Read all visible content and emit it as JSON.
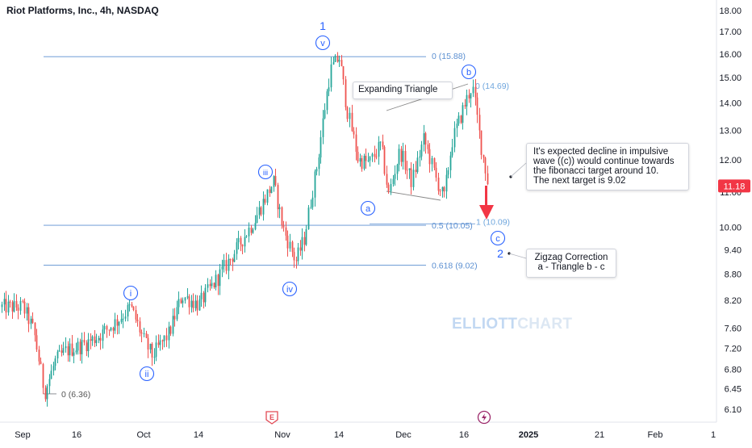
{
  "header": {
    "title": "Riot Platforms, Inc., 4h, NASDAQ"
  },
  "colors": {
    "up": "#26a69a",
    "down": "#ef5350",
    "fib": "#5b8fd1",
    "wave": "#2962ff",
    "axis_text": "#131722",
    "price_tag": "#f23645"
  },
  "chart_data": {
    "type": "candlestick",
    "symbol": "RIOT",
    "interval": "4h",
    "exchange": "NASDAQ",
    "ylim": [
      5.85,
      18.35
    ],
    "y_scale": "log",
    "y_ticks": [
      "18.00",
      "17.00",
      "16.00",
      "15.00",
      "14.00",
      "13.00",
      "12.00",
      "11.00",
      "10.00",
      "9.40",
      "8.80",
      "8.20",
      "7.60",
      "7.20",
      "6.80",
      "6.45",
      "6.10"
    ],
    "x_ticks": [
      "Sep",
      "16",
      "Oct",
      "14",
      "Nov",
      "14",
      "Dec",
      "16",
      "2025",
      "21",
      "Feb",
      "1"
    ],
    "last_price": "11.18",
    "price_path": [
      [
        "2024-09-01",
        8.05
      ],
      [
        "2024-09-04",
        7.55
      ],
      [
        "2024-09-07",
        6.38
      ],
      [
        "2024-09-10",
        6.95
      ],
      [
        "2024-09-13",
        7.15
      ],
      [
        "2024-09-17",
        7.25
      ],
      [
        "2024-09-21",
        7.45
      ],
      [
        "2024-09-25",
        7.75
      ],
      [
        "2024-09-28",
        8.05
      ],
      [
        "2024-10-01",
        7.35
      ],
      [
        "2024-10-03",
        7.05
      ],
      [
        "2024-10-07",
        7.5
      ],
      [
        "2024-10-10",
        8.3
      ],
      [
        "2024-10-14",
        8.1
      ],
      [
        "2024-10-18",
        8.7
      ],
      [
        "2024-10-22",
        9.4
      ],
      [
        "2024-10-26",
        10.2
      ],
      [
        "2024-10-30",
        11.3
      ],
      [
        "2024-11-01",
        10.0
      ],
      [
        "2024-11-04",
        9.1
      ],
      [
        "2024-11-06",
        9.7
      ],
      [
        "2024-11-09",
        11.9
      ],
      [
        "2024-11-12",
        15.3
      ],
      [
        "2024-11-14",
        15.88
      ],
      [
        "2024-11-16",
        13.8
      ],
      [
        "2024-11-19",
        12.0
      ],
      [
        "2024-11-22",
        11.9
      ],
      [
        "2024-11-25",
        12.5
      ],
      [
        "2024-11-27",
        10.9
      ],
      [
        "2024-11-30",
        12.3
      ],
      [
        "2024-12-03",
        11.3
      ],
      [
        "2024-12-06",
        12.7
      ],
      [
        "2024-12-09",
        11.4
      ],
      [
        "2024-12-11",
        10.8
      ],
      [
        "2024-12-13",
        12.6
      ],
      [
        "2024-12-16",
        13.9
      ],
      [
        "2024-12-18",
        14.69
      ],
      [
        "2024-12-20",
        12.6
      ],
      [
        "2024-12-22",
        11.18
      ]
    ],
    "fib_levels": [
      {
        "label": "0 (15.88)",
        "value": 15.88
      },
      {
        "label": "0.5 (10.05)",
        "value": 10.05
      },
      {
        "label": "0.618 (9.02)",
        "value": 9.02
      },
      {
        "label": "0 (14.69)",
        "value": 14.69
      },
      {
        "label": "1 (10.09)",
        "value": 10.09
      },
      {
        "label": "0 (6.36)",
        "value": 6.36
      }
    ],
    "wave_labels": [
      {
        "text": "i",
        "date": "2024-09-28",
        "price": 8.05
      },
      {
        "text": "ii",
        "date": "2024-10-03",
        "price": 7.05
      },
      {
        "text": "iii",
        "date": "2024-10-30",
        "price": 11.3
      },
      {
        "text": "iv",
        "date": "2024-11-04",
        "price": 9.1
      },
      {
        "text": "v",
        "date": "2024-11-14",
        "price": 15.88
      },
      {
        "text": "a",
        "date": "2024-11-27",
        "price": 10.9
      },
      {
        "text": "b",
        "date": "2024-12-18",
        "price": 14.69
      },
      {
        "text": "c",
        "date": "2024-12-23",
        "price": 10.09
      }
    ],
    "degree_labels": [
      "1",
      "2"
    ],
    "annotations": {
      "expanding_triangle": "Expanding Triangle",
      "expected_decline": [
        "It's expected decline in impulsive",
        "wave ((c)) would continue towards",
        "the fibonacci target around 10.",
        "The next target is 9.02"
      ],
      "zigzag": [
        "Zigzag Correction",
        "a - Triangle b - c"
      ]
    },
    "event_icons": [
      "E",
      "dividend-icon"
    ]
  },
  "watermark": {
    "part1": "ELLIOTT",
    "part2": "CHART"
  }
}
